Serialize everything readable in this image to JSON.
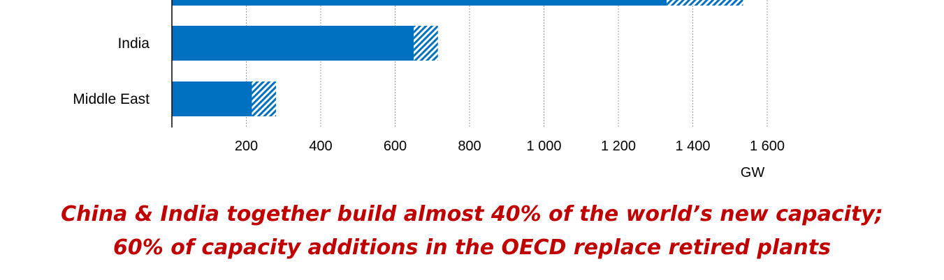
{
  "chart_data": {
    "type": "bar",
    "orientation": "horizontal",
    "stacked": true,
    "categories": [
      "",
      "India",
      "Middle East"
    ],
    "series": [
      {
        "values": [
          1330,
          650,
          215
        ],
        "color": "#0070c0",
        "pattern": "solid"
      },
      {
        "values": [
          205,
          65,
          65
        ],
        "color": "#0070c0",
        "pattern": "hatched"
      }
    ],
    "x_ticks": [
      "200",
      "400",
      "600",
      "800",
      "1 000",
      "1 200",
      "1 400",
      "1 600"
    ],
    "x_tick_values": [
      200,
      400,
      600,
      800,
      1000,
      1200,
      1400,
      1600
    ],
    "xlim": [
      0,
      1600
    ],
    "xunit": "GW",
    "grid": "vertical dotted",
    "legend": "none"
  },
  "caption": {
    "line1": "China & India together build almost 40% of the world’s new capacity;",
    "line2": "60% of capacity additions in the OECD replace retired plants"
  }
}
